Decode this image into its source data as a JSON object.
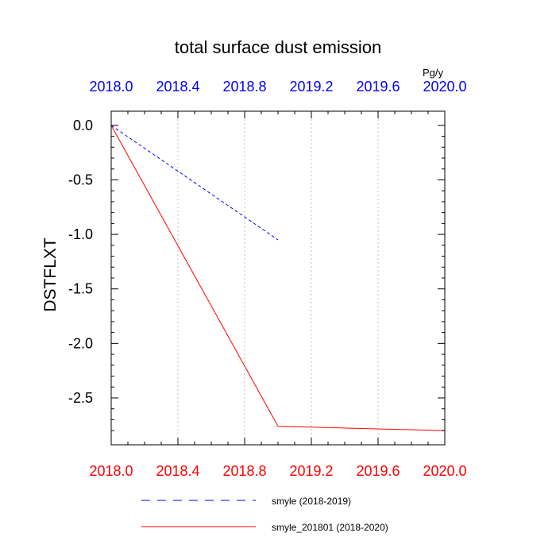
{
  "chart_data": {
    "type": "line",
    "title": "total surface dust emission",
    "ylabel": "DSTFLXT",
    "units": "Pg/y",
    "xlim": [
      2018.0,
      2020.0
    ],
    "ylim": [
      -2.93,
      0.13
    ],
    "xticks": [
      "2018.0",
      "2018.4",
      "2018.8",
      "2019.2",
      "2019.6",
      "2020.0"
    ],
    "xtick_values": [
      2018.0,
      2018.4,
      2018.8,
      2019.2,
      2019.6,
      2020.0
    ],
    "yticks": [
      "0.0",
      "-0.5",
      "-1.0",
      "-1.5",
      "-2.0",
      "-2.5"
    ],
    "ytick_values": [
      0.0,
      -0.5,
      -1.0,
      -1.5,
      -2.0,
      -2.5
    ],
    "grid": "vertical-dotted",
    "series": [
      {
        "name": "smyle (2018-2019)",
        "color": "#0000ff",
        "dash": "dashed",
        "x": [
          2018.0,
          2019.0
        ],
        "y": [
          0.0,
          -1.05
        ]
      },
      {
        "name": "smyle_201801 (2018-2020)",
        "color": "#ff0000",
        "dash": "solid",
        "x": [
          2018.0,
          2019.0,
          2020.0
        ],
        "y": [
          0.0,
          -2.76,
          -2.8
        ]
      }
    ],
    "bottom_axis_color": "#ff0000",
    "top_axis_color": "#0000ff"
  }
}
